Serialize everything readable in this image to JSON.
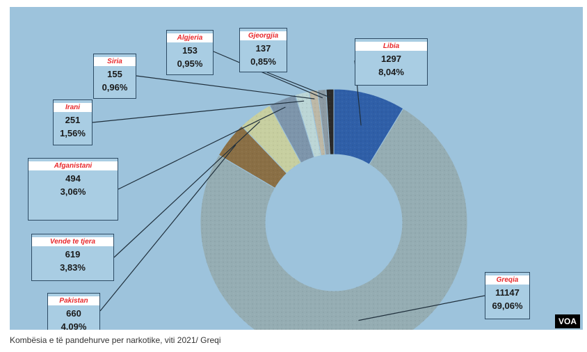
{
  "chart_data": {
    "type": "pie",
    "categories": [
      "Libia",
      "Greqia",
      "Pakistan",
      "Vende te tjera",
      "Afganistani",
      "Irani",
      "Siria",
      "Algjeria",
      "Gjeorgjia"
    ],
    "values": [
      1297,
      11147,
      660,
      619,
      494,
      251,
      155,
      153,
      137
    ],
    "percent_labels": [
      "8,04%",
      "69,06%",
      "4,09%",
      "3,83%",
      "3,06%",
      "1,56%",
      "0,96%",
      "0,95%",
      "0,85%"
    ],
    "colors": [
      "#2f5fa8",
      "#95adb3",
      "#8a6f45",
      "#c7cfa0",
      "#7d95ab",
      "#bcd6d6",
      "#bdb8a6",
      "#8c9aa3",
      "#2a2a2a"
    ],
    "donut": true,
    "legend": "callouts"
  },
  "callouts": [
    {
      "name": "Gjeorgjia",
      "value": "137",
      "percent": "0,85%"
    },
    {
      "name": "Algjeria",
      "value": "153",
      "percent": "0,95%"
    },
    {
      "name": "Siria",
      "value": "155",
      "percent": "0,96%"
    },
    {
      "name": "Libia",
      "value": "1297",
      "percent": "8,04%"
    },
    {
      "name": "Irani",
      "value": "251",
      "percent": "1,56%"
    },
    {
      "name": "Afganistani",
      "value": "494",
      "percent": "3,06%"
    },
    {
      "name": "Vende te tjera",
      "value": "619",
      "percent": "3,83%"
    },
    {
      "name": "Pakistan",
      "value": "660",
      "percent": "4,09%"
    },
    {
      "name": "Greqia",
      "value": "11147",
      "percent": "69,06%"
    }
  ],
  "badge": "VOA",
  "caption": "Kombësia e të pandehurve per narkotike, viti 2021/ Greqi"
}
